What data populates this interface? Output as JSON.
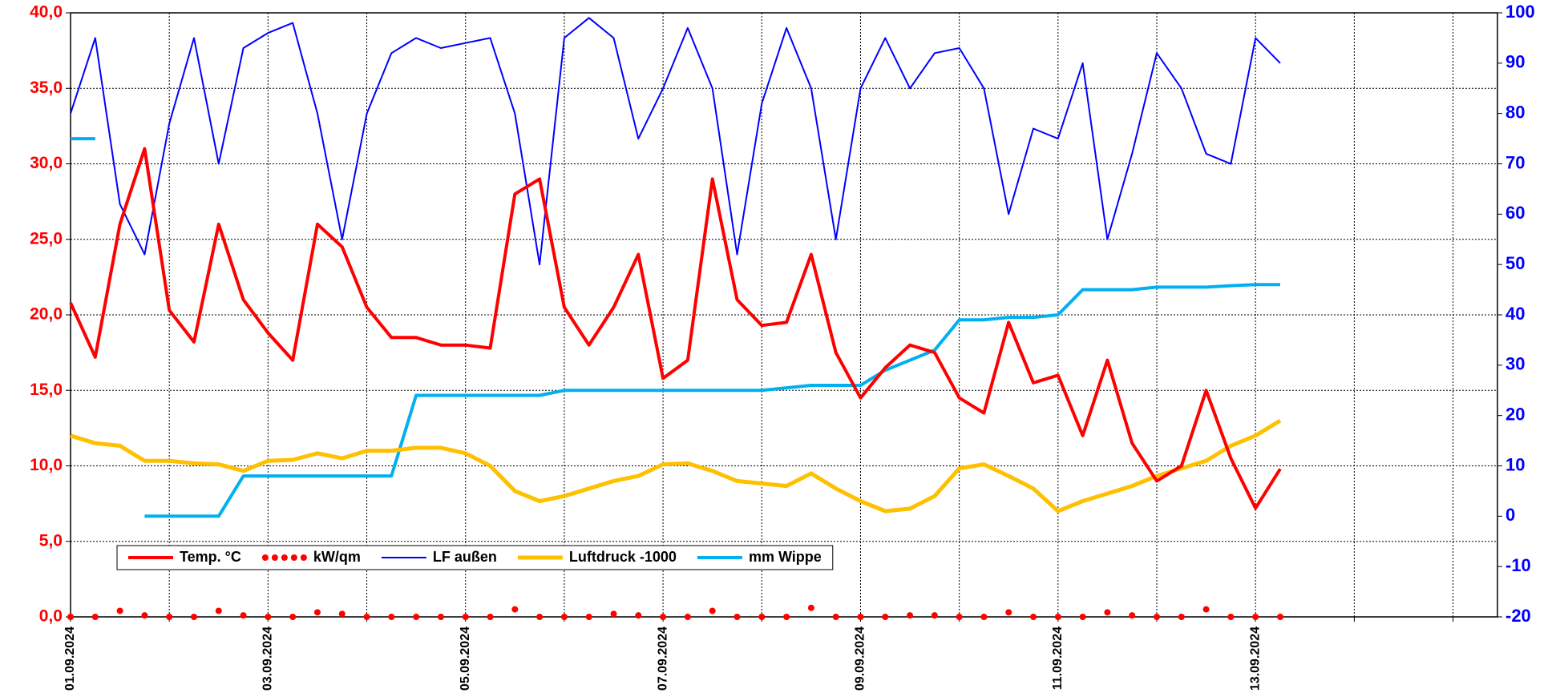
{
  "chart_data": {
    "type": "line",
    "x": [
      0,
      0.25,
      0.5,
      0.75,
      1,
      1.25,
      1.5,
      1.75,
      2,
      2.25,
      2.5,
      2.75,
      3,
      3.25,
      3.5,
      3.75,
      4,
      4.25,
      4.5,
      4.75,
      5,
      5.25,
      5.5,
      5.75,
      6,
      6.25,
      6.5,
      6.75,
      7,
      7.25,
      7.5,
      7.75,
      8,
      8.25,
      8.5,
      8.75,
      9,
      9.25,
      9.5,
      9.75,
      10,
      10.25,
      10.5,
      10.75,
      11,
      11.25,
      11.5,
      11.75,
      12,
      12.25
    ],
    "xlim": [
      0,
      14.45
    ],
    "xticks": [
      {
        "value": 0,
        "label": "01.09.2024"
      },
      {
        "value": 2,
        "label": "03.09.2024"
      },
      {
        "value": 4,
        "label": "05.09.2024"
      },
      {
        "value": 6,
        "label": "07.09.2024"
      },
      {
        "value": 8,
        "label": "09.09.2024"
      },
      {
        "value": 10,
        "label": "11.09.2024"
      },
      {
        "value": 12,
        "label": "13.09.2024"
      }
    ],
    "xminorticks": [
      1,
      3,
      5,
      7,
      9,
      11,
      13,
      14
    ],
    "ylim": [
      0,
      40
    ],
    "yticks": [
      {
        "value": 0,
        "label": "0,0"
      },
      {
        "value": 5,
        "label": "5,0"
      },
      {
        "value": 10,
        "label": "10,0"
      },
      {
        "value": 15,
        "label": "15,0"
      },
      {
        "value": 20,
        "label": "20,0"
      },
      {
        "value": 25,
        "label": "25,0"
      },
      {
        "value": 30,
        "label": "30,0"
      },
      {
        "value": 35,
        "label": "35,0"
      },
      {
        "value": 40,
        "label": "40,0"
      }
    ],
    "y2lim": [
      -20,
      100
    ],
    "y2ticks": [
      -20,
      -10,
      0,
      10,
      20,
      30,
      40,
      50,
      60,
      70,
      80,
      90,
      100
    ],
    "ytick_color": "#ff0000",
    "y2tick_color": "#0000ff",
    "grid": true,
    "legend": "lower left",
    "series": [
      {
        "name": "Temp. °C",
        "color": "#ff0000",
        "style": "line",
        "width": 4,
        "values": [
          20.8,
          17.2,
          26.0,
          31.0,
          20.3,
          18.2,
          26.0,
          21.0,
          18.8,
          17.0,
          26.0,
          24.5,
          20.5,
          18.5,
          18.5,
          18.0,
          18.0,
          17.8,
          28.0,
          29.0,
          20.5,
          18.0,
          20.5,
          24.0,
          15.8,
          17.0,
          29.0,
          21.0,
          19.3,
          19.5,
          24.0,
          17.5,
          14.5,
          16.5,
          18.0,
          17.5,
          14.5,
          13.5,
          19.5,
          15.5,
          16.0,
          12.0,
          17.0,
          11.5,
          9.0,
          10.0,
          15.0,
          10.5,
          7.2,
          9.8
        ]
      },
      {
        "name": "kW/qm",
        "color": "#ff0000",
        "style": "dots",
        "width": 4,
        "values": [
          0,
          0,
          0.4,
          0.1,
          0,
          0,
          0.4,
          0.1,
          0,
          0,
          0.3,
          0.2,
          0,
          0,
          0,
          0,
          0,
          0,
          0.5,
          0,
          0,
          0,
          0.2,
          0.1,
          0,
          0,
          0.4,
          0,
          0,
          0,
          0.6,
          0,
          0,
          0,
          0.1,
          0.1,
          0,
          0,
          0.3,
          0,
          0,
          0,
          0.3,
          0.1,
          0,
          0,
          0.5,
          0,
          0,
          0
        ]
      },
      {
        "name": "LF außen",
        "color": "#0000ff",
        "style": "line",
        "width": 2,
        "axis": "y2",
        "values": [
          80,
          95,
          62,
          52,
          78,
          95,
          70,
          93,
          96,
          98,
          80,
          55,
          80,
          92,
          95,
          93,
          94,
          95,
          80,
          50,
          95,
          99,
          95,
          75,
          85,
          97,
          85,
          52,
          82,
          97,
          85,
          55,
          85,
          95,
          85,
          92,
          93,
          85,
          60,
          77,
          75,
          90,
          55,
          72,
          92,
          85,
          72,
          70,
          95,
          90
        ]
      },
      {
        "name": "Luftdruck -1000",
        "color": "#ffc000",
        "style": "line",
        "width": 5,
        "axis": "y2",
        "values": [
          16,
          14.5,
          14,
          11,
          11,
          10.5,
          10.3,
          9,
          11,
          11.2,
          12.5,
          11.5,
          13,
          13,
          13.6,
          13.6,
          12.5,
          10,
          5,
          3,
          4,
          5.5,
          7,
          8,
          10.3,
          10.5,
          9,
          7,
          6.5,
          6,
          8.5,
          5.5,
          3,
          1,
          1.5,
          4,
          9.5,
          10.3,
          8,
          5.5,
          1,
          3,
          4.5,
          6,
          8,
          9.5,
          11,
          14,
          16,
          19
        ]
      },
      {
        "name": "mm Wippe",
        "color": "#00b0f0",
        "style": "line",
        "width": 4,
        "axis": "y2",
        "values": [
          75,
          75,
          null,
          0,
          0,
          0,
          0,
          8,
          8,
          8,
          8,
          8,
          8,
          8,
          24,
          24,
          24,
          24,
          24,
          24,
          25,
          25,
          25,
          25,
          25,
          25,
          25,
          25,
          25,
          25.5,
          26,
          26,
          26,
          29,
          31,
          33,
          39,
          39,
          39.5,
          39.5,
          40,
          45,
          45,
          45,
          45.5,
          45.5,
          45.5,
          45.8,
          46,
          46
        ]
      }
    ]
  }
}
